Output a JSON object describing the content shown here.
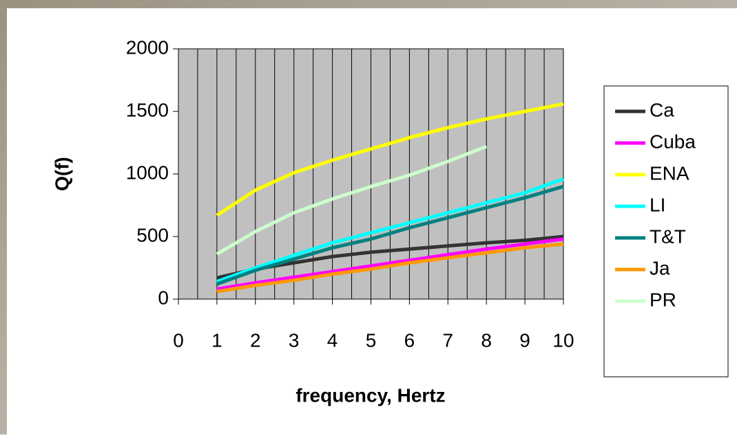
{
  "chart_data": {
    "type": "line",
    "x_label": "frequency, Hertz",
    "y_label": "Q(f)",
    "x": [
      1,
      2,
      3,
      4,
      5,
      6,
      7,
      8,
      9,
      10
    ],
    "series": [
      {
        "name": "Ca",
        "color": "#333333",
        "values": [
          170,
          240,
          290,
          340,
          375,
          400,
          425,
          450,
          470,
          500
        ]
      },
      {
        "name": "Cuba",
        "color": "#ff00ff",
        "values": [
          80,
          130,
          175,
          220,
          265,
          310,
          355,
          400,
          440,
          480
        ]
      },
      {
        "name": "ENA",
        "color": "#ffff00",
        "values": [
          670,
          870,
          1010,
          1110,
          1200,
          1290,
          1370,
          1440,
          1500,
          1560
        ]
      },
      {
        "name": "LI",
        "color": "#00ffff",
        "values": [
          140,
          250,
          350,
          450,
          530,
          610,
          690,
          770,
          850,
          960
        ]
      },
      {
        "name": "T&T",
        "color": "#008080",
        "values": [
          120,
          230,
          320,
          410,
          480,
          570,
          650,
          730,
          810,
          900
        ]
      },
      {
        "name": "Ja",
        "color": "#ff9900",
        "values": [
          60,
          110,
          150,
          200,
          240,
          290,
          330,
          370,
          410,
          440
        ]
      },
      {
        "name": "PR",
        "color": "#ccffcc",
        "values": [
          360,
          540,
          690,
          800,
          900,
          990,
          1100,
          1220,
          null,
          null
        ]
      }
    ],
    "xlim": [
      0,
      10
    ],
    "xticks": [
      0,
      1,
      2,
      3,
      4,
      5,
      6,
      7,
      8,
      9,
      10
    ],
    "xgrid": [
      0.5,
      1,
      1.5,
      2,
      2.5,
      3,
      3.5,
      4,
      4.5,
      5,
      5.5,
      6,
      6.5,
      7,
      7.5,
      8,
      8.5,
      9,
      9.5
    ],
    "ylim": [
      0,
      2000
    ],
    "yticks": [
      0,
      500,
      1000,
      1500,
      2000
    ],
    "plot_color": "#c0c0c0",
    "legend": "right"
  }
}
